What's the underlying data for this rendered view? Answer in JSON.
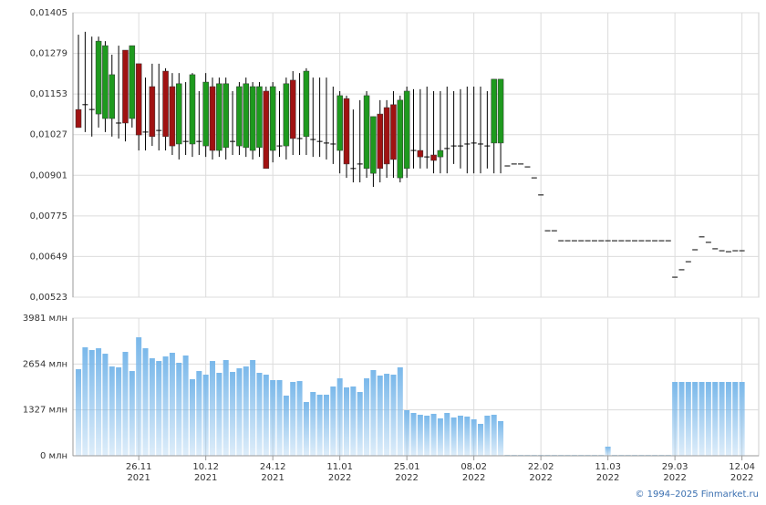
{
  "chart_data": [
    {
      "type": "candlestick",
      "up_color": "#1e9a1e",
      "down_color": "#a01212",
      "flat_color": "#000000",
      "xlim": [
        -0.82,
        101.5
      ],
      "ylim": [
        0.00523,
        0.01405
      ],
      "yticks": [
        {
          "value": 0.00523,
          "label": "0,00523"
        },
        {
          "value": 0.00649,
          "label": "0,00649"
        },
        {
          "value": 0.00775,
          "label": "0,00775"
        },
        {
          "value": 0.00901,
          "label": "0,00901"
        },
        {
          "value": 0.01027,
          "label": "0,01027"
        },
        {
          "value": 0.01153,
          "label": "0,01153"
        },
        {
          "value": 0.01279,
          "label": "0,01279"
        },
        {
          "value": 0.01405,
          "label": "0,01405"
        }
      ],
      "open": [
        0.01105,
        0.0112,
        0.01105,
        0.01091,
        0.01077,
        0.01077,
        0.01063,
        0.01289,
        0.01077,
        0.01247,
        0.01035,
        0.01176,
        0.0104,
        0.01224,
        0.01176,
        0.00998,
        0.01006,
        0.00998,
        0.01006,
        0.00992,
        0.01176,
        0.00978,
        0.00987,
        0.01006,
        0.00992,
        0.00987,
        0.00978,
        0.00987,
        0.01162,
        0.00978,
        0.00992,
        0.00992,
        0.01196,
        0.01015,
        0.01021,
        0.01012,
        0.01006,
        0.01001,
        0.00998,
        0.00978,
        0.01139,
        0.00922,
        0.00936,
        0.00922,
        0.00907,
        0.01091,
        0.01111,
        0.0112,
        0.00893,
        0.00922,
        0.00978,
        0.00978,
        0.00958,
        0.00964,
        0.00958,
        0.00984,
        0.00992,
        0.00992,
        0.00998,
        0.01001,
        0.00998,
        0.00992,
        0.01001,
        0.01001,
        0.0093,
        0.00936,
        0.00936,
        0.00927,
        0.00893,
        0.0084,
        0.00729,
        0.00729,
        0.00698,
        0.00698,
        0.00698,
        0.00698,
        0.00698,
        0.00698,
        0.00698,
        0.00698,
        0.00698,
        0.00698,
        0.00698,
        0.00698,
        0.00698,
        0.00698,
        0.00698,
        0.00698,
        0.00698,
        0.00585,
        0.00608,
        0.00633,
        0.0067,
        0.0071,
        0.00693,
        0.00673,
        0.00667,
        0.00664,
        0.00667,
        0.00667
      ],
      "high": [
        0.01337,
        0.01346,
        0.01331,
        0.01331,
        0.01317,
        0.01275,
        0.01303,
        0.01289,
        0.01303,
        0.01247,
        0.01204,
        0.01247,
        0.01247,
        0.01233,
        0.01218,
        0.01218,
        0.0119,
        0.01218,
        0.01162,
        0.01218,
        0.01204,
        0.01204,
        0.01204,
        0.01162,
        0.0119,
        0.01204,
        0.0119,
        0.0119,
        0.01176,
        0.0119,
        0.01162,
        0.01204,
        0.01224,
        0.01218,
        0.01233,
        0.01204,
        0.01204,
        0.01204,
        0.01176,
        0.01162,
        0.01148,
        0.01105,
        0.01134,
        0.01162,
        0.01083,
        0.01134,
        0.01134,
        0.01162,
        0.01148,
        0.01176,
        0.01168,
        0.01168,
        0.01176,
        0.01162,
        0.01162,
        0.01176,
        0.01162,
        0.01168,
        0.01176,
        0.01176,
        0.01176,
        0.01162,
        0.01199,
        0.01199,
        0.0093,
        0.00936,
        0.00936,
        0.00927,
        0.00893,
        0.0084,
        0.00729,
        0.00729,
        0.00698,
        0.00698,
        0.00698,
        0.00698,
        0.00698,
        0.00698,
        0.00698,
        0.00698,
        0.00698,
        0.00698,
        0.00698,
        0.00698,
        0.00698,
        0.00698,
        0.00698,
        0.00698,
        0.00698,
        0.00585,
        0.00608,
        0.00633,
        0.0067,
        0.0071,
        0.00693,
        0.00673,
        0.00667,
        0.00664,
        0.00667,
        0.00667
      ],
      "low": [
        0.01049,
        0.01035,
        0.01021,
        0.01049,
        0.01035,
        0.01021,
        0.01015,
        0.01006,
        0.01049,
        0.00978,
        0.00978,
        0.00992,
        0.00978,
        0.00978,
        0.00964,
        0.0095,
        0.00964,
        0.00958,
        0.00964,
        0.00958,
        0.0095,
        0.00958,
        0.0095,
        0.00964,
        0.00964,
        0.00958,
        0.0095,
        0.00958,
        0.00922,
        0.00941,
        0.00958,
        0.0095,
        0.00964,
        0.00964,
        0.00964,
        0.00958,
        0.00958,
        0.0095,
        0.00936,
        0.00907,
        0.00893,
        0.00879,
        0.00879,
        0.00893,
        0.00865,
        0.00879,
        0.00893,
        0.00893,
        0.00879,
        0.00893,
        0.00922,
        0.00922,
        0.00922,
        0.00907,
        0.00907,
        0.00907,
        0.00936,
        0.00922,
        0.00907,
        0.00907,
        0.00907,
        0.00922,
        0.00907,
        0.00907,
        0.0093,
        0.00936,
        0.00936,
        0.00927,
        0.00893,
        0.0084,
        0.00729,
        0.00729,
        0.00698,
        0.00698,
        0.00698,
        0.00698,
        0.00698,
        0.00698,
        0.00698,
        0.00698,
        0.00698,
        0.00698,
        0.00698,
        0.00698,
        0.00698,
        0.00698,
        0.00698,
        0.00698,
        0.00698,
        0.00585,
        0.00608,
        0.00633,
        0.0067,
        0.0071,
        0.00693,
        0.00673,
        0.00667,
        0.00664,
        0.00667,
        0.00667
      ],
      "close": [
        0.01049,
        0.0112,
        0.01105,
        0.01317,
        0.01303,
        0.01213,
        0.01063,
        0.01063,
        0.01303,
        0.01026,
        0.01035,
        0.01021,
        0.0104,
        0.01021,
        0.00992,
        0.01185,
        0.01006,
        0.01213,
        0.01006,
        0.0119,
        0.00978,
        0.01185,
        0.01185,
        0.01006,
        0.01176,
        0.01185,
        0.01176,
        0.01176,
        0.00922,
        0.01176,
        0.00992,
        0.01185,
        0.01015,
        0.01015,
        0.01224,
        0.01012,
        0.01006,
        0.01001,
        0.00998,
        0.01148,
        0.00936,
        0.00922,
        0.00936,
        0.01148,
        0.01083,
        0.00922,
        0.00936,
        0.0095,
        0.01134,
        0.01162,
        0.00978,
        0.00958,
        0.00958,
        0.00947,
        0.00978,
        0.00984,
        0.00992,
        0.00992,
        0.00998,
        0.01001,
        0.00998,
        0.00992,
        0.01199,
        0.01199,
        0.0093,
        0.00936,
        0.00936,
        0.00927,
        0.00893,
        0.0084,
        0.00729,
        0.00729,
        0.00698,
        0.00698,
        0.00698,
        0.00698,
        0.00698,
        0.00698,
        0.00698,
        0.00698,
        0.00698,
        0.00698,
        0.00698,
        0.00698,
        0.00698,
        0.00698,
        0.00698,
        0.00698,
        0.00698,
        0.00585,
        0.00608,
        0.00633,
        0.0067,
        0.0071,
        0.00693,
        0.00673,
        0.00667,
        0.00664,
        0.00667,
        0.00667
      ]
    },
    {
      "type": "bar",
      "color": "#7ab8ea",
      "xlim": [
        -0.82,
        101.5
      ],
      "ylim": [
        0,
        3981
      ],
      "yticks": [
        {
          "value": 0,
          "label": "0 млн"
        },
        {
          "value": 1327,
          "label": "1327 млн"
        },
        {
          "value": 2654,
          "label": "2654 млн"
        },
        {
          "value": 3981,
          "label": "3981 млн"
        }
      ],
      "xticks": [
        {
          "value": 9,
          "label": "26.11\n2021"
        },
        {
          "value": 19,
          "label": "10.12\n2021"
        },
        {
          "value": 29,
          "label": "24.12\n2021"
        },
        {
          "value": 39,
          "label": "11.01\n2022"
        },
        {
          "value": 49,
          "label": "25.01\n2022"
        },
        {
          "value": 59,
          "label": "08.02\n2022"
        },
        {
          "value": 69,
          "label": "22.02\n2022"
        },
        {
          "value": 79,
          "label": "11.03\n2022"
        },
        {
          "value": 89,
          "label": "29.03\n2022"
        },
        {
          "value": 99,
          "label": "12.04\n2022"
        }
      ],
      "values": [
        2504,
        3137,
        3058,
        3110,
        2952,
        2583,
        2557,
        3005,
        2451,
        3427,
        3110,
        2820,
        2741,
        2873,
        2979,
        2689,
        2900,
        2214,
        2451,
        2346,
        2741,
        2399,
        2768,
        2425,
        2530,
        2583,
        2768,
        2399,
        2346,
        2188,
        2188,
        1740,
        2135,
        2161,
        1555,
        1845,
        1766,
        1766,
        2003,
        2240,
        1977,
        2003,
        1845,
        2240,
        2478,
        2320,
        2372,
        2346,
        2557,
        1318,
        1239,
        1186,
        1160,
        1213,
        1081,
        1239,
        1107,
        1160,
        1133,
        1054,
        923,
        1160,
        1186,
        1002,
        20,
        20,
        20,
        20,
        20,
        20,
        20,
        20,
        20,
        20,
        20,
        20,
        20,
        20,
        20,
        264,
        20,
        20,
        20,
        20,
        20,
        20,
        20,
        20,
        20,
        2135,
        2135,
        2135,
        2135,
        2135,
        2135,
        2135,
        2135,
        2135,
        2135,
        2135
      ],
      "source": "© 1994–2025 Finmarket.ru"
    }
  ]
}
